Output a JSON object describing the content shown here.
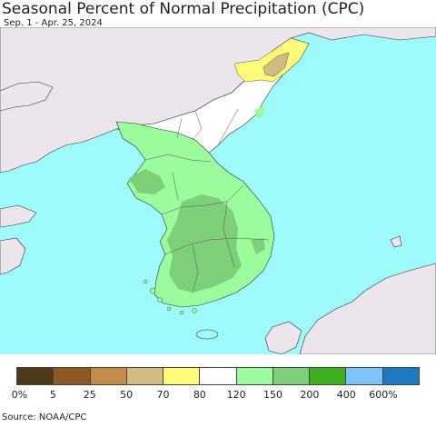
{
  "header": {
    "title": "Seasonal Percent of Normal Precipitation (CPC)",
    "date_range": "Sep. 1 - Apr. 25, 2024"
  },
  "legend": {
    "colors": [
      "#4d3a16",
      "#8b5a24",
      "#c28d4a",
      "#d1bc84",
      "#fdfb7a",
      "#ffffff",
      "#9afc9c",
      "#7dcf79",
      "#3db01f",
      "#7dc4fc",
      "#1e7ac0"
    ],
    "labels": [
      "0%",
      "5",
      "25",
      "50",
      "70",
      "80",
      "120",
      "150",
      "200",
      "400",
      "600%"
    ]
  },
  "footer": {
    "source": "Source: NOAA/CPC"
  },
  "map_colors": {
    "ocean": "#9ffbfb",
    "foreign_land": "#ece6ec",
    "north_white": "#ffffff",
    "light_green": "#9afc9c",
    "mid_green": "#7dcf79",
    "yellow": "#fdfb7a",
    "tan": "#d1bc84"
  }
}
